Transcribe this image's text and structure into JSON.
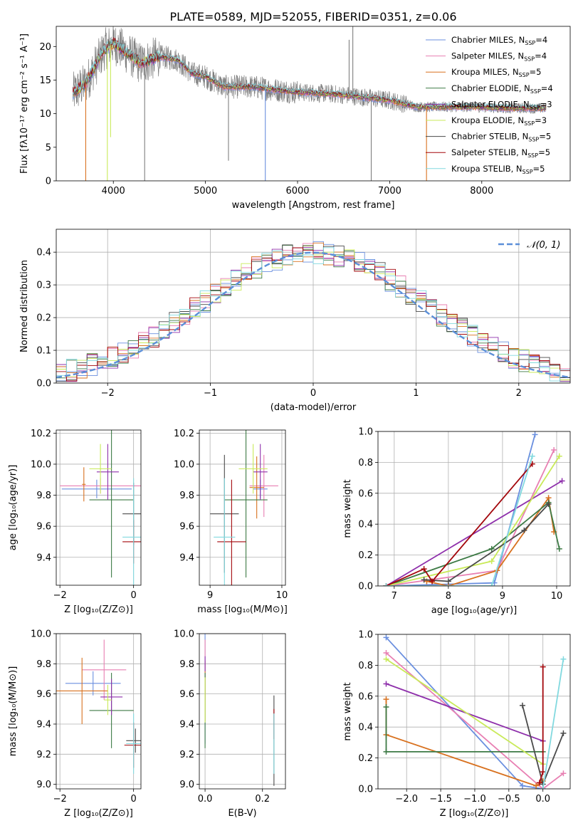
{
  "figure_title": "PLATE=0589, MJD=52055, FIBERID=0351, z=0.06",
  "model_colors": [
    "#6a8fdf",
    "#e87fb2",
    "#d8711f",
    "#3d7a45",
    "#8e2fab",
    "#c9ea59",
    "#4a4a4a",
    "#a3070c",
    "#82d9df"
  ],
  "chart_data": [
    {
      "id": "spectrum",
      "type": "line",
      "title": "PLATE=0589, MJD=52055, FIBERID=0351, z=0.06",
      "xlabel": "wavelength [Angstrom, rest frame]",
      "ylabel": "Flux [fλ10⁻¹⁷ erg cm⁻² s⁻¹ A⁻¹]",
      "xlim": [
        3380,
        8960
      ],
      "ylim": [
        0,
        23
      ],
      "x_ticks": [
        4000,
        5000,
        6000,
        7000,
        8000
      ],
      "y_ticks": [
        0,
        5,
        10,
        15,
        20
      ],
      "grid": false,
      "legend_position": "top-right",
      "legend": [
        {
          "label": "Chabrier MILES, N",
          "sub": "SSP",
          "suffix": "=4"
        },
        {
          "label": "Salpeter MILES, N",
          "sub": "SSP",
          "suffix": "=4"
        },
        {
          "label": "Kroupa MILES, N",
          "sub": "SSP",
          "suffix": "=5"
        },
        {
          "label": "Chabrier ELODIE, N",
          "sub": "SSP",
          "suffix": "=4"
        },
        {
          "label": "Salpeter ELODIE, N",
          "sub": "SSP",
          "suffix": "=3"
        },
        {
          "label": "Kroupa ELODIE, N",
          "sub": "SSP",
          "suffix": "=3"
        },
        {
          "label": "Chabrier STELIB, N",
          "sub": "SSP",
          "suffix": "=5"
        },
        {
          "label": "Salpeter STELIB, N",
          "sub": "SSP",
          "suffix": "=5"
        },
        {
          "label": "Kroupa STELIB, N",
          "sub": "SSP",
          "suffix": "=5"
        }
      ],
      "continuum": [
        [
          3560,
          13.0
        ],
        [
          3700,
          14.5
        ],
        [
          3800,
          17.0
        ],
        [
          3900,
          19.5
        ],
        [
          4000,
          20.5
        ],
        [
          4100,
          19.5
        ],
        [
          4300,
          17.5
        ],
        [
          4500,
          18.5
        ],
        [
          4700,
          18.0
        ],
        [
          4850,
          16.0
        ],
        [
          5000,
          15.5
        ],
        [
          5200,
          14.0
        ],
        [
          5500,
          14.0
        ],
        [
          5800,
          13.5
        ],
        [
          6000,
          13.2
        ],
        [
          6300,
          13.0
        ],
        [
          6500,
          12.8
        ],
        [
          6800,
          12.3
        ],
        [
          7000,
          12.0
        ],
        [
          7300,
          11.0
        ],
        [
          7600,
          11.0
        ],
        [
          7900,
          11.0
        ],
        [
          8300,
          10.8
        ],
        [
          8700,
          10.8
        ]
      ],
      "spikes": [
        [
          3700,
          0
        ],
        [
          3935,
          0
        ],
        [
          3970,
          6.5
        ],
        [
          4340,
          0
        ],
        [
          5250,
          3
        ],
        [
          5650,
          0
        ],
        [
          6560,
          21
        ],
        [
          6600,
          23
        ],
        [
          6800,
          0
        ],
        [
          7400,
          0
        ]
      ]
    },
    {
      "id": "residuals",
      "type": "histogram",
      "xlabel": "(data-model)/error",
      "ylabel": "Normed distribution",
      "xlim": [
        -2.5,
        2.5
      ],
      "ylim": [
        0,
        0.47
      ],
      "x_ticks": [
        -2,
        -1,
        0,
        1,
        2
      ],
      "y_ticks": [
        0.0,
        0.1,
        0.2,
        0.3,
        0.4
      ],
      "grid": true,
      "legend": "𝒩(0, 1)",
      "bin_width": 0.1,
      "bin_start": -2.5
    },
    {
      "id": "age-vs-Z",
      "type": "scatter-errorbar",
      "xlabel": "Z [log₁₀(Z/Z⊙)]",
      "ylabel": "age  [log₁₀(age/yr)]",
      "xlim": [
        -2.1,
        0.2
      ],
      "ylim": [
        9.22,
        10.22
      ],
      "x_ticks": [
        -2,
        0
      ],
      "y_ticks": [
        9.4,
        9.6,
        9.8,
        10.0,
        10.2
      ],
      "points": [
        {
          "x": -1.0,
          "y": 9.84,
          "xerr": 0.95,
          "yerr": 0.06
        },
        {
          "x": -0.9,
          "y": 9.86,
          "xerr": 1.1,
          "yerr": 0.05
        },
        {
          "x": -1.35,
          "y": 9.87,
          "xerr": 0.05,
          "yerr": 0.11
        },
        {
          "x": -0.6,
          "y": 9.77,
          "xerr": 0.6,
          "yerr": 0.5
        },
        {
          "x": -0.7,
          "y": 9.95,
          "xerr": 0.3,
          "yerr": 0.18
        },
        {
          "x": -0.9,
          "y": 9.97,
          "xerr": 0.3,
          "yerr": 0.16
        },
        {
          "x": 0.0,
          "y": 9.68,
          "xerr": 0.3,
          "yerr": 0.2
        },
        {
          "x": 0.0,
          "y": 9.5,
          "xerr": 0.3,
          "yerr": 0.14
        },
        {
          "x": 0.0,
          "y": 9.53,
          "xerr": 0.3,
          "yerr": 0.38
        }
      ]
    },
    {
      "id": "age-vs-mass",
      "type": "scatter-errorbar",
      "xlabel": "mass [log₁₀(M/M⊙)]",
      "ylabel": "",
      "xlim": [
        8.85,
        10.05
      ],
      "ylim": [
        9.22,
        10.22
      ],
      "x_ticks": [
        9,
        10
      ],
      "y_ticks": [
        9.4,
        9.6,
        9.8,
        10.0,
        10.2
      ],
      "points": [
        {
          "x": 9.7,
          "y": 9.84,
          "xerr": 0.1,
          "yerr": 0.06
        },
        {
          "x": 9.75,
          "y": 9.86,
          "xerr": 0.2,
          "yerr": 0.2
        },
        {
          "x": 9.65,
          "y": 9.85,
          "xerr": 0.1,
          "yerr": 0.2
        },
        {
          "x": 9.5,
          "y": 9.77,
          "xerr": 0.3,
          "yerr": 0.5
        },
        {
          "x": 9.7,
          "y": 9.95,
          "xerr": 0.1,
          "yerr": 0.18
        },
        {
          "x": 9.6,
          "y": 9.97,
          "xerr": 0.2,
          "yerr": 0.16
        },
        {
          "x": 9.2,
          "y": 9.68,
          "xerr": 0.2,
          "yerr": 0.38
        },
        {
          "x": 9.3,
          "y": 9.5,
          "xerr": 0.2,
          "yerr": 0.4
        },
        {
          "x": 9.2,
          "y": 9.53,
          "xerr": 0.15,
          "yerr": 0.38
        }
      ]
    },
    {
      "id": "mass-weight-vs-age",
      "type": "line",
      "xlabel": "age  [log₁₀(age/yr)]",
      "ylabel": "mass weight",
      "xlim": [
        6.7,
        10.25
      ],
      "ylim": [
        0,
        1.0
      ],
      "x_ticks": [
        7,
        8,
        9,
        10
      ],
      "y_ticks": [
        0.0,
        0.2,
        0.4,
        0.6,
        0.8,
        1.0
      ],
      "series": [
        {
          "x": [
            6.85,
            8.85,
            9.6
          ],
          "y": [
            0.0,
            0.02,
            0.98
          ]
        },
        {
          "x": [
            6.85,
            8.9,
            9.95
          ],
          "y": [
            0.0,
            0.1,
            0.88
          ]
        },
        {
          "x": [
            7.6,
            8.0,
            8.9,
            9.85,
            9.95
          ],
          "y": [
            0.03,
            0.0,
            0.1,
            0.57,
            0.35
          ]
        },
        {
          "x": [
            6.85,
            8.8,
            9.85,
            10.05
          ],
          "y": [
            0.0,
            0.24,
            0.54,
            0.24
          ]
        },
        {
          "x": [
            6.85,
            10.1
          ],
          "y": [
            0.0,
            0.68
          ]
        },
        {
          "x": [
            6.85,
            8.8,
            10.05
          ],
          "y": [
            0.0,
            0.16,
            0.84
          ]
        },
        {
          "x": [
            7.55,
            8.0,
            9.4,
            9.85
          ],
          "y": [
            0.04,
            0.03,
            0.36,
            0.53
          ]
        },
        {
          "x": [
            6.85,
            7.55,
            7.7,
            9.55
          ],
          "y": [
            0.0,
            0.11,
            0.03,
            0.79
          ]
        },
        {
          "x": [
            6.85,
            8.8,
            9.55
          ],
          "y": [
            0.0,
            0.0,
            0.84
          ]
        }
      ]
    },
    {
      "id": "mass-vs-Z",
      "type": "scatter-errorbar",
      "xlabel": "Z [log₁₀(Z/Z⊙)]",
      "ylabel": "mass [log₁₀(M/M⊙)]",
      "xlim": [
        -2.1,
        0.2
      ],
      "ylim": [
        8.97,
        10.0
      ],
      "x_ticks": [
        -2,
        0
      ],
      "y_ticks": [
        9.0,
        9.2,
        9.4,
        9.6,
        9.8,
        10.0
      ],
      "points": [
        {
          "x": -1.1,
          "y": 9.67,
          "xerr": 0.75,
          "yerr": 0.08
        },
        {
          "x": -0.8,
          "y": 9.76,
          "xerr": 0.6,
          "yerr": 0.2
        },
        {
          "x": -1.4,
          "y": 9.62,
          "xerr": 0.7,
          "yerr": 0.22
        },
        {
          "x": -0.6,
          "y": 9.49,
          "xerr": 0.6,
          "yerr": 0.25
        },
        {
          "x": -0.6,
          "y": 9.58,
          "xerr": 0.3,
          "yerr": 0.12
        },
        {
          "x": -0.7,
          "y": 9.56,
          "xerr": 0.1,
          "yerr": 0.1
        },
        {
          "x": 0.05,
          "y": 9.29,
          "xerr": 0.25,
          "yerr": 0.08
        },
        {
          "x": 0.0,
          "y": 9.26,
          "xerr": 0.25,
          "yerr": 0.15
        },
        {
          "x": 0.0,
          "y": 9.27,
          "xerr": 0.2,
          "yerr": 0.2
        }
      ]
    },
    {
      "id": "mass-vs-EBV",
      "type": "scatter-errorbar",
      "xlabel": "E(B-V)",
      "ylabel": "",
      "xlim": [
        -0.02,
        0.28
      ],
      "ylim": [
        8.97,
        10.0
      ],
      "x_ticks": [
        0.0,
        0.2
      ],
      "y_ticks": [
        9.0,
        9.2,
        9.4,
        9.6,
        9.8,
        10.0
      ],
      "points": [
        {
          "x": 0.0,
          "y": 9.67,
          "xerr": 0.0,
          "yerr": 0.4
        },
        {
          "x": 0.0,
          "y": 9.76,
          "xerr": 0.0,
          "yerr": 0.2
        },
        {
          "x": 0.0,
          "y": 9.62,
          "xerr": 0.0,
          "yerr": 0.2
        },
        {
          "x": 0.0,
          "y": 9.49,
          "xerr": 0.0,
          "yerr": 0.25
        },
        {
          "x": 0.0,
          "y": 9.8,
          "xerr": 0.0,
          "yerr": 0.05
        },
        {
          "x": 0.0,
          "y": 9.56,
          "xerr": 0.0,
          "yerr": 0.15
        },
        {
          "x": 0.24,
          "y": 9.29,
          "xerr": 0.0,
          "yerr": 0.3
        },
        {
          "x": 0.24,
          "y": 9.4,
          "xerr": 0.0,
          "yerr": 0.1
        },
        {
          "x": 0.24,
          "y": 9.27,
          "xerr": 0.0,
          "yerr": 0.2
        }
      ]
    },
    {
      "id": "mass-weight-vs-Z",
      "type": "line",
      "xlabel": "Z [log₁₀(Z/Z⊙)]",
      "ylabel": "mass weight",
      "xlim": [
        -2.42,
        0.4
      ],
      "ylim": [
        0,
        1.0
      ],
      "x_ticks": [
        -2.0,
        -1.5,
        -1.0,
        -0.5,
        0.0
      ],
      "y_ticks": [
        0.0,
        0.2,
        0.4,
        0.6,
        0.8,
        1.0
      ],
      "series": [
        {
          "x": [
            -2.3,
            -0.3,
            0.0
          ],
          "y": [
            0.98,
            0.02,
            0.0
          ]
        },
        {
          "x": [
            -2.3,
            0.0,
            0.3
          ],
          "y": [
            0.88,
            0.0,
            0.1
          ]
        },
        {
          "x": [
            -2.3,
            -2.3,
            -0.1,
            0.0
          ],
          "y": [
            0.58,
            0.35,
            0.02,
            0.05
          ]
        },
        {
          "x": [
            -2.3,
            -2.3,
            0.0
          ],
          "y": [
            0.53,
            0.24,
            0.24
          ]
        },
        {
          "x": [
            -2.3,
            0.0
          ],
          "y": [
            0.68,
            0.31
          ]
        },
        {
          "x": [
            -2.3,
            0.0
          ],
          "y": [
            0.84,
            0.16
          ]
        },
        {
          "x": [
            -0.3,
            0.0,
            0.3
          ],
          "y": [
            0.54,
            0.03,
            0.36
          ]
        },
        {
          "x": [
            0.0,
            0.0,
            -0.05
          ],
          "y": [
            0.79,
            0.11,
            0.04
          ]
        },
        {
          "x": [
            0.0,
            0.3
          ],
          "y": [
            0.0,
            0.84
          ]
        }
      ]
    }
  ]
}
